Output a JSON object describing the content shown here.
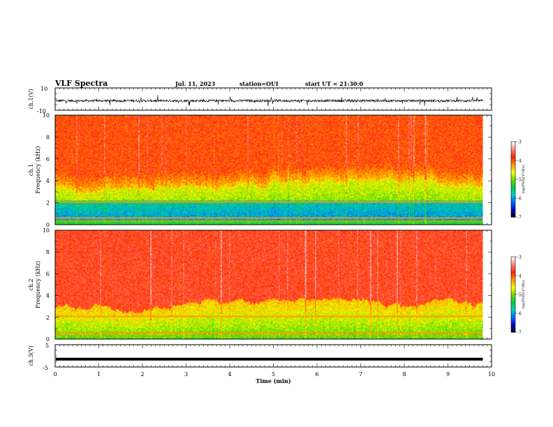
{
  "header": {
    "title": "VLF Spectra",
    "date": "Jul. 11, 2023",
    "station": "station=OUI",
    "start_ut": "start UT =  21:30:0"
  },
  "chart_data": [
    {
      "type": "line",
      "name": "ch1-waveform",
      "ylabel": "ch.1(V)",
      "ylim": [
        -10,
        10
      ],
      "yticks": [
        "10",
        "-10"
      ],
      "xlim": [
        0,
        10
      ],
      "data_span_min": [
        0,
        9.8
      ],
      "line_color": "#000000"
    },
    {
      "type": "heatmap",
      "name": "ch1-spectrogram",
      "ylabel_line1": "ch.1",
      "ylabel_line2": "Frequency (kHz)",
      "ylim": [
        0,
        10
      ],
      "yticks": [
        "0",
        "2",
        "4",
        "6",
        "8",
        "10"
      ],
      "xlim": [
        0,
        10
      ],
      "data_span_min": [
        0,
        9.8
      ],
      "high_freq_boundary_khz": 3.5,
      "colorbar": {
        "label": "log(PSD)(V²/Hz)",
        "range": [
          -7,
          -3
        ],
        "ticks": [
          "-3",
          "-4",
          "-5",
          "-6",
          "-7"
        ]
      }
    },
    {
      "type": "heatmap",
      "name": "ch2-spectrogram",
      "ylabel_line1": "ch.2",
      "ylabel_line2": "Frequency (kHz)",
      "ylim": [
        0,
        10
      ],
      "yticks": [
        "0",
        "2",
        "4",
        "6",
        "8",
        "10"
      ],
      "xlim": [
        0,
        10
      ],
      "data_span_min": [
        0,
        9.8
      ],
      "high_freq_boundary_khz": 3.0,
      "colorbar": {
        "label": "log(PSD)(V²/Hz)",
        "range": [
          -7,
          -3
        ],
        "ticks": [
          "-3",
          "-4",
          "-5",
          "-6",
          "-7"
        ]
      }
    },
    {
      "type": "line",
      "name": "ch3-waveform",
      "ylabel": "ch.3(V)",
      "ylim": [
        -5,
        5
      ],
      "yticks": [
        "5",
        "-5"
      ],
      "xlim": [
        0,
        10
      ],
      "constant_value": -1.5,
      "data_span_min": [
        0,
        9.8
      ],
      "xlabel": "Time (min)",
      "xticks": [
        "0",
        "1",
        "2",
        "3",
        "4",
        "5",
        "6",
        "7",
        "8",
        "9",
        "10"
      ]
    }
  ],
  "colorscale": {
    "stops": [
      "#000000",
      "#0000cc",
      "#0066ff",
      "#00cccc",
      "#00cc44",
      "#66dd00",
      "#ffff00",
      "#ff9900",
      "#ff2200",
      "#ff8080",
      "#ffffff"
    ]
  }
}
